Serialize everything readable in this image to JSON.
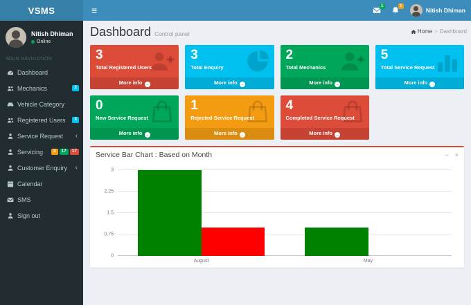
{
  "navbar": {
    "brand": "VSMS",
    "messages_badge": "1",
    "notifications_badge": "1",
    "user_name": "Nitish Dhiman"
  },
  "sidebar": {
    "user_name": "Nitish Dhiman",
    "user_status": "Online",
    "section_header": "MAIN NAVIGATION",
    "items": [
      {
        "label": "Dashboard",
        "icon": "gauge-icon",
        "badges": [],
        "arrow": false
      },
      {
        "label": "Mechanics",
        "icon": "users-icon",
        "badges": [
          {
            "text": "2",
            "color": "#00c0ef"
          }
        ],
        "arrow": false
      },
      {
        "label": "Vehicle Category",
        "icon": "car-icon",
        "badges": [],
        "arrow": false
      },
      {
        "label": "Registered Users",
        "icon": "users-icon",
        "badges": [
          {
            "text": "3",
            "color": "#00c0ef"
          }
        ],
        "arrow": false
      },
      {
        "label": "Service Request",
        "icon": "user-icon",
        "badges": [],
        "arrow": true
      },
      {
        "label": "Servicing",
        "icon": "user-icon",
        "badges": [
          {
            "text": "3",
            "color": "#f39c12"
          },
          {
            "text": "17",
            "color": "#00a65a"
          },
          {
            "text": "17",
            "color": "#dd4b39"
          }
        ],
        "arrow": false
      },
      {
        "label": "Customer Enquiry",
        "icon": "user-icon",
        "badges": [],
        "arrow": true
      },
      {
        "label": "Calendar",
        "icon": "calendar-icon",
        "badges": [],
        "arrow": false
      },
      {
        "label": "SMS",
        "icon": "envelope-icon",
        "badges": [],
        "arrow": false
      },
      {
        "label": "Sign out",
        "icon": "user-icon",
        "badges": [],
        "arrow": false
      }
    ]
  },
  "header": {
    "title": "Dashboard",
    "subtitle": "Control panel",
    "breadcrumb_home": "Home",
    "breadcrumb_separator": ">",
    "breadcrumb_current": "Dashboard"
  },
  "info_boxes": {
    "row1": [
      {
        "value": "3",
        "label": "Total Registered Users",
        "more_label": "More info",
        "icon": "user-plus-icon",
        "bg": "#dd4b39"
      },
      {
        "value": "3",
        "label": "Total Enquiry",
        "more_label": "More info",
        "icon": "pie-chart-icon",
        "bg": "#00c0ef"
      },
      {
        "value": "2",
        "label": "Total Mechanics",
        "more_label": "More info",
        "icon": "user-plus-icon",
        "bg": "#00a65a"
      },
      {
        "value": "5",
        "label": "Total Service Request",
        "more_label": "More info",
        "icon": "bar-chart-icon",
        "bg": "#00c0ef"
      }
    ],
    "row2": [
      {
        "value": "0",
        "label": "New Service Request",
        "more_label": "More info",
        "icon": "shopping-bag-icon",
        "bg": "#00a65a"
      },
      {
        "value": "1",
        "label": "Rejected Service Request",
        "more_label": "More info",
        "icon": "shopping-bag-icon",
        "bg": "#f39c12"
      },
      {
        "value": "4",
        "label": "Completed Service Request",
        "more_label": "More info",
        "icon": "shopping-bag-icon",
        "bg": "#dd4b39"
      }
    ]
  },
  "chart_box": {
    "title": "Service Bar Chart : Based on Month",
    "collapse_label": "−",
    "close_label": "×"
  },
  "chart_data": {
    "type": "bar",
    "title": "Service Bar Chart : Based on Month",
    "categories": [
      "August",
      "May"
    ],
    "series": [
      {
        "name": "green-series",
        "color": "#008000",
        "values": [
          3,
          1
        ]
      },
      {
        "name": "red-series",
        "color": "#ff0000",
        "values": [
          1,
          0
        ]
      }
    ],
    "yticks": [
      0,
      0.75,
      1.5,
      2.25,
      3
    ],
    "ylim": [
      0,
      3
    ],
    "xlabel": "",
    "ylabel": "",
    "legend": "none",
    "grid": true
  }
}
